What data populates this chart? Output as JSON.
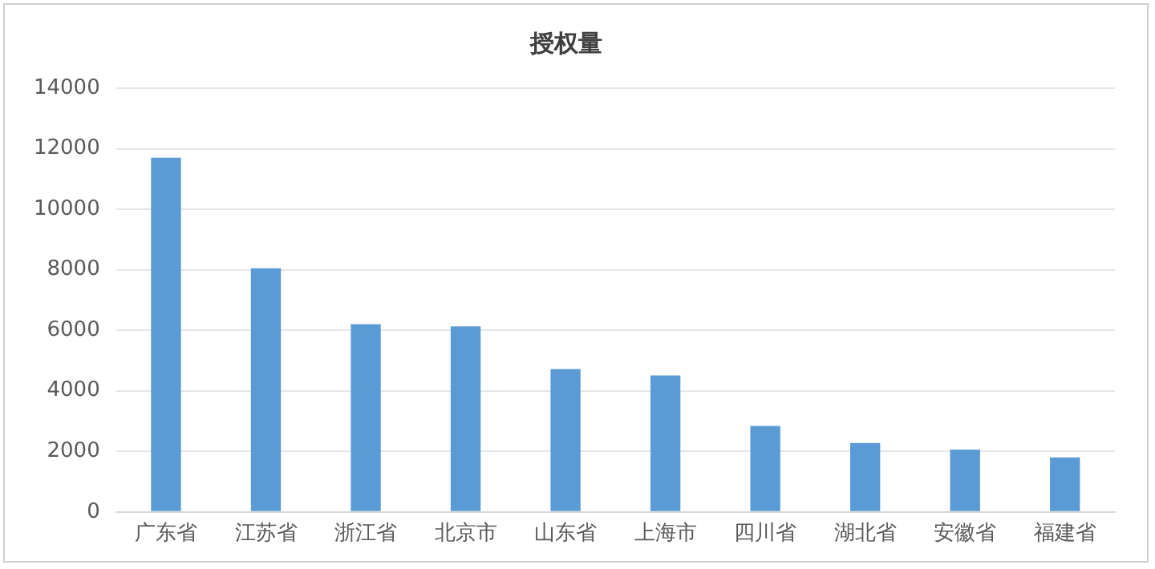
{
  "chart_data": {
    "type": "bar",
    "title": "授权量",
    "categories": [
      "广东省",
      "江苏省",
      "浙江省",
      "北京市",
      "山东省",
      "上海市",
      "四川省",
      "湖北省",
      "安徽省",
      "福建省"
    ],
    "values": [
      11700,
      8050,
      6200,
      6130,
      4720,
      4510,
      2840,
      2280,
      2060,
      1800
    ],
    "color": "#5b9bd5",
    "ylim": [
      0,
      14000
    ],
    "yticks": [
      0,
      2000,
      4000,
      6000,
      8000,
      10000,
      12000,
      14000
    ],
    "grid": "y",
    "legend": false
  }
}
